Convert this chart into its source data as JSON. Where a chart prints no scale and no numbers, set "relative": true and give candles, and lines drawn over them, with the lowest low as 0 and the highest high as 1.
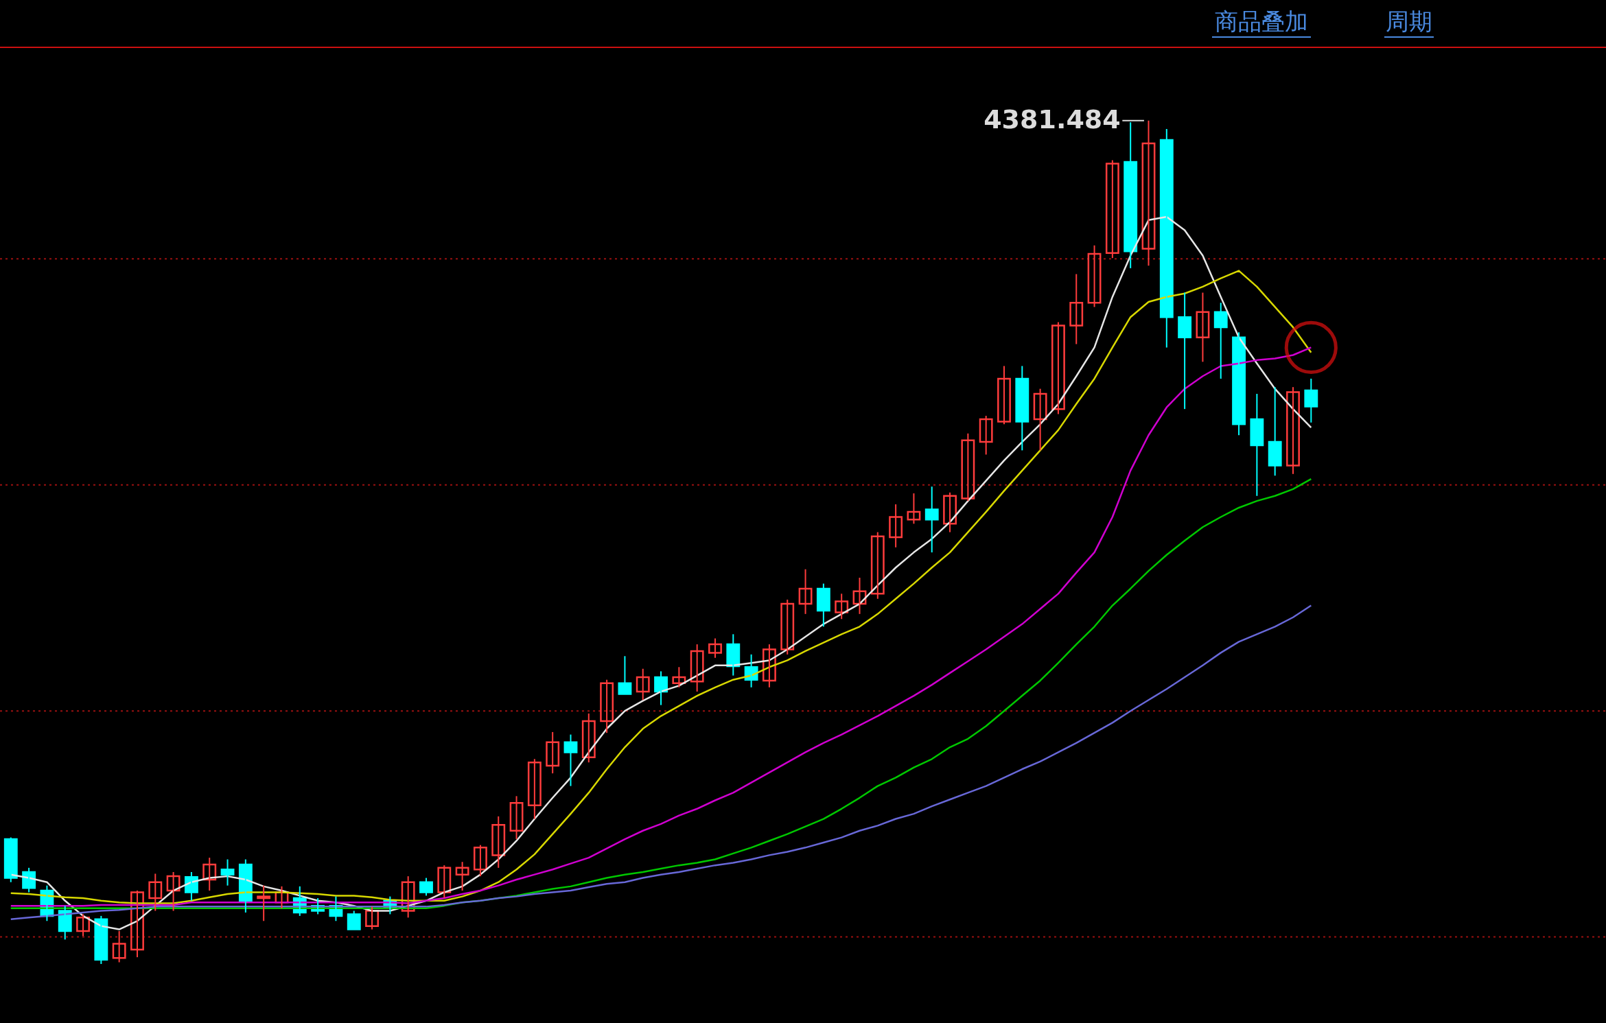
{
  "chart_data": {
    "type": "candlestick",
    "relative": true,
    "categories": [
      null,
      null,
      null,
      null,
      null,
      null,
      null,
      null,
      null,
      null,
      null,
      null,
      null,
      null,
      null,
      null,
      null,
      null,
      null,
      null,
      null,
      null,
      null,
      null,
      null,
      null,
      null,
      null,
      null,
      null,
      null,
      null,
      null,
      null,
      null,
      null,
      null,
      null,
      null,
      null,
      null,
      null,
      null,
      null,
      null,
      null,
      null,
      null,
      null,
      null,
      null,
      null,
      null,
      null,
      null,
      null,
      null,
      null,
      null,
      null,
      null,
      null,
      null,
      null,
      null,
      null,
      null,
      null,
      null,
      null,
      null,
      null,
      null
    ],
    "ohlc": [
      [
        0.148,
        0.15,
        0.097,
        0.102
      ],
      [
        0.109,
        0.114,
        0.085,
        0.09
      ],
      [
        0.087,
        0.093,
        0.051,
        0.057
      ],
      [
        0.063,
        0.069,
        0.029,
        0.039
      ],
      [
        0.039,
        0.059,
        0.033,
        0.055
      ],
      [
        0.053,
        0.057,
        0.0,
        0.005
      ],
      [
        0.007,
        0.039,
        0.002,
        0.024
      ],
      [
        0.017,
        0.087,
        0.008,
        0.085
      ],
      [
        0.078,
        0.107,
        0.063,
        0.097
      ],
      [
        0.087,
        0.109,
        0.063,
        0.104
      ],
      [
        0.103,
        0.109,
        0.075,
        0.085
      ],
      [
        0.1,
        0.126,
        0.087,
        0.118
      ],
      [
        0.112,
        0.124,
        0.093,
        0.106
      ],
      [
        0.118,
        0.124,
        0.061,
        0.075
      ],
      [
        0.078,
        0.093,
        0.051,
        0.08
      ],
      [
        0.073,
        0.092,
        0.066,
        0.085
      ],
      [
        0.078,
        0.092,
        0.057,
        0.061
      ],
      [
        0.069,
        0.078,
        0.059,
        0.063
      ],
      [
        0.069,
        0.08,
        0.051,
        0.057
      ],
      [
        0.059,
        0.063,
        0.041,
        0.041
      ],
      [
        0.045,
        0.068,
        0.041,
        0.063
      ],
      [
        0.075,
        0.08,
        0.059,
        0.066
      ],
      [
        0.063,
        0.104,
        0.055,
        0.097
      ],
      [
        0.097,
        0.102,
        0.081,
        0.085
      ],
      [
        0.085,
        0.117,
        0.078,
        0.114
      ],
      [
        0.106,
        0.121,
        0.087,
        0.114
      ],
      [
        0.112,
        0.141,
        0.104,
        0.138
      ],
      [
        0.129,
        0.175,
        0.114,
        0.165
      ],
      [
        0.158,
        0.199,
        0.148,
        0.191
      ],
      [
        0.188,
        0.243,
        0.172,
        0.239
      ],
      [
        0.235,
        0.275,
        0.226,
        0.263
      ],
      [
        0.263,
        0.272,
        0.211,
        0.251
      ],
      [
        0.245,
        0.297,
        0.239,
        0.288
      ],
      [
        0.288,
        0.337,
        0.274,
        0.333
      ],
      [
        0.333,
        0.365,
        0.32,
        0.32
      ],
      [
        0.323,
        0.35,
        0.313,
        0.34
      ],
      [
        0.34,
        0.347,
        0.307,
        0.323
      ],
      [
        0.333,
        0.352,
        0.328,
        0.34
      ],
      [
        0.335,
        0.379,
        0.323,
        0.371
      ],
      [
        0.369,
        0.386,
        0.363,
        0.379
      ],
      [
        0.379,
        0.391,
        0.342,
        0.353
      ],
      [
        0.352,
        0.367,
        0.328,
        0.337
      ],
      [
        0.336,
        0.379,
        0.328,
        0.373
      ],
      [
        0.373,
        0.432,
        0.367,
        0.427
      ],
      [
        0.427,
        0.468,
        0.415,
        0.445
      ],
      [
        0.445,
        0.451,
        0.4,
        0.419
      ],
      [
        0.417,
        0.439,
        0.409,
        0.43
      ],
      [
        0.427,
        0.458,
        0.415,
        0.442
      ],
      [
        0.439,
        0.512,
        0.433,
        0.507
      ],
      [
        0.506,
        0.545,
        0.494,
        0.53
      ],
      [
        0.527,
        0.558,
        0.522,
        0.536
      ],
      [
        0.539,
        0.566,
        0.488,
        0.527
      ],
      [
        0.522,
        0.559,
        0.512,
        0.555
      ],
      [
        0.552,
        0.629,
        0.549,
        0.621
      ],
      [
        0.619,
        0.65,
        0.604,
        0.646
      ],
      [
        0.643,
        0.709,
        0.64,
        0.694
      ],
      [
        0.694,
        0.709,
        0.609,
        0.643
      ],
      [
        0.646,
        0.682,
        0.609,
        0.676
      ],
      [
        0.658,
        0.761,
        0.652,
        0.757
      ],
      [
        0.757,
        0.818,
        0.735,
        0.784
      ],
      [
        0.784,
        0.852,
        0.779,
        0.842
      ],
      [
        0.843,
        0.953,
        0.837,
        0.949
      ],
      [
        0.951,
        0.998,
        0.825,
        0.845
      ],
      [
        0.848,
        1.0,
        0.828,
        0.973
      ],
      [
        0.977,
        0.99,
        0.731,
        0.767
      ],
      [
        0.767,
        0.796,
        0.658,
        0.743
      ],
      [
        0.743,
        0.796,
        0.714,
        0.773
      ],
      [
        0.773,
        0.784,
        0.694,
        0.755
      ],
      [
        0.743,
        0.749,
        0.627,
        0.64
      ],
      [
        0.646,
        0.676,
        0.555,
        0.615
      ],
      [
        0.619,
        0.684,
        0.579,
        0.591
      ],
      [
        0.591,
        0.684,
        0.581,
        0.678
      ],
      [
        0.68,
        0.694,
        0.642,
        0.661
      ]
    ],
    "colors": [
      "#00ffff",
      "#00ffff",
      "#00ffff",
      "#00ffff",
      "#ff3c3c",
      "#00ffff",
      "#ff3c3c",
      "#ff3c3c",
      "#ff3c3c",
      "#ff3c3c",
      "#00ffff",
      "#ff3c3c",
      "#00ffff",
      "#00ffff",
      "#ff3c3c",
      "#ff3c3c",
      "#00ffff",
      "#00ffff",
      "#00ffff",
      "#00ffff",
      "#ff3c3c",
      "#00ffff",
      "#ff3c3c",
      "#00ffff",
      "#ff3c3c",
      "#ff3c3c",
      "#ff3c3c",
      "#ff3c3c",
      "#ff3c3c",
      "#ff3c3c",
      "#ff3c3c",
      "#00ffff",
      "#ff3c3c",
      "#ff3c3c",
      "#00ffff",
      "#ff3c3c",
      "#00ffff",
      "#ff3c3c",
      "#ff3c3c",
      "#ff3c3c",
      "#00ffff",
      "#00ffff",
      "#ff3c3c",
      "#ff3c3c",
      "#ff3c3c",
      "#00ffff",
      "#ff3c3c",
      "#ff3c3c",
      "#ff3c3c",
      "#ff3c3c",
      "#ff3c3c",
      "#00ffff",
      "#ff3c3c",
      "#ff3c3c",
      "#ff3c3c",
      "#ff3c3c",
      "#00ffff",
      "#ff3c3c",
      "#ff3c3c",
      "#ff3c3c",
      "#ff3c3c",
      "#ff3c3c",
      "#00ffff",
      "#ff3c3c",
      "#00ffff",
      "#00ffff",
      "#ff3c3c",
      "#00ffff",
      "#00ffff",
      "#00ffff",
      "#00ffff",
      "#ff3c3c",
      "#00ffff"
    ],
    "series": [
      {
        "type": "line",
        "color": "#e6e6e6",
        "values": [
          0.106,
          0.102,
          0.097,
          0.075,
          0.057,
          0.045,
          0.041,
          0.051,
          0.069,
          0.087,
          0.097,
          0.102,
          0.104,
          0.1,
          0.092,
          0.087,
          0.081,
          0.075,
          0.073,
          0.069,
          0.063,
          0.063,
          0.069,
          0.075,
          0.085,
          0.092,
          0.106,
          0.124,
          0.146,
          0.172,
          0.197,
          0.221,
          0.251,
          0.279,
          0.3,
          0.312,
          0.323,
          0.33,
          0.342,
          0.354,
          0.354,
          0.357,
          0.36,
          0.373,
          0.388,
          0.403,
          0.415,
          0.427,
          0.449,
          0.47,
          0.488,
          0.504,
          0.524,
          0.549,
          0.573,
          0.597,
          0.619,
          0.64,
          0.664,
          0.697,
          0.731,
          0.791,
          0.84,
          0.882,
          0.886,
          0.87,
          0.84,
          0.791,
          0.743,
          0.712,
          0.682,
          0.658,
          0.636
        ]
      },
      {
        "type": "line",
        "color": "#d8d800",
        "values": [
          0.084,
          0.083,
          0.081,
          0.079,
          0.078,
          0.075,
          0.073,
          0.072,
          0.072,
          0.072,
          0.075,
          0.079,
          0.083,
          0.085,
          0.085,
          0.085,
          0.084,
          0.083,
          0.081,
          0.081,
          0.079,
          0.076,
          0.075,
          0.075,
          0.075,
          0.08,
          0.087,
          0.097,
          0.112,
          0.13,
          0.154,
          0.178,
          0.203,
          0.231,
          0.257,
          0.279,
          0.294,
          0.306,
          0.318,
          0.328,
          0.337,
          0.342,
          0.352,
          0.36,
          0.371,
          0.381,
          0.391,
          0.4,
          0.415,
          0.433,
          0.451,
          0.47,
          0.488,
          0.512,
          0.536,
          0.561,
          0.585,
          0.609,
          0.633,
          0.664,
          0.694,
          0.731,
          0.767,
          0.785,
          0.791,
          0.795,
          0.803,
          0.813,
          0.822,
          0.803,
          0.779,
          0.755,
          0.725
        ]
      },
      {
        "type": "line",
        "color": "#d000d0",
        "values": [
          0.069,
          0.069,
          0.069,
          0.069,
          0.069,
          0.07,
          0.07,
          0.07,
          0.07,
          0.07,
          0.073,
          0.073,
          0.073,
          0.073,
          0.073,
          0.073,
          0.073,
          0.073,
          0.073,
          0.073,
          0.073,
          0.073,
          0.072,
          0.075,
          0.078,
          0.083,
          0.087,
          0.093,
          0.1,
          0.106,
          0.112,
          0.119,
          0.126,
          0.137,
          0.148,
          0.158,
          0.166,
          0.176,
          0.184,
          0.194,
          0.203,
          0.215,
          0.227,
          0.239,
          0.251,
          0.262,
          0.272,
          0.283,
          0.294,
          0.306,
          0.318,
          0.331,
          0.345,
          0.359,
          0.373,
          0.388,
          0.403,
          0.421,
          0.439,
          0.464,
          0.488,
          0.53,
          0.585,
          0.627,
          0.66,
          0.682,
          0.697,
          0.709,
          0.712,
          0.716,
          0.718,
          0.722,
          0.731
        ]
      },
      {
        "type": "line",
        "color": "#00c800",
        "values": [
          0.066,
          0.066,
          0.066,
          0.066,
          0.066,
          0.066,
          0.066,
          0.066,
          0.066,
          0.066,
          0.066,
          0.066,
          0.066,
          0.066,
          0.066,
          0.066,
          0.066,
          0.066,
          0.066,
          0.066,
          0.066,
          0.066,
          0.066,
          0.066,
          0.069,
          0.073,
          0.075,
          0.078,
          0.081,
          0.085,
          0.089,
          0.092,
          0.097,
          0.102,
          0.106,
          0.109,
          0.113,
          0.117,
          0.12,
          0.124,
          0.131,
          0.138,
          0.146,
          0.154,
          0.163,
          0.172,
          0.184,
          0.197,
          0.211,
          0.221,
          0.233,
          0.243,
          0.257,
          0.267,
          0.282,
          0.3,
          0.318,
          0.336,
          0.357,
          0.379,
          0.4,
          0.425,
          0.445,
          0.466,
          0.485,
          0.502,
          0.518,
          0.53,
          0.541,
          0.549,
          0.555,
          0.563,
          0.575
        ]
      },
      {
        "type": "line",
        "color": "#6868d8",
        "values": [
          0.053,
          0.055,
          0.057,
          0.059,
          0.061,
          0.063,
          0.064,
          0.066,
          0.068,
          0.068,
          0.068,
          0.068,
          0.068,
          0.068,
          0.068,
          0.068,
          0.068,
          0.068,
          0.068,
          0.068,
          0.068,
          0.068,
          0.068,
          0.068,
          0.07,
          0.073,
          0.075,
          0.078,
          0.08,
          0.083,
          0.085,
          0.087,
          0.091,
          0.095,
          0.097,
          0.102,
          0.106,
          0.109,
          0.113,
          0.117,
          0.12,
          0.124,
          0.129,
          0.133,
          0.138,
          0.144,
          0.15,
          0.158,
          0.164,
          0.172,
          0.178,
          0.187,
          0.195,
          0.203,
          0.211,
          0.221,
          0.231,
          0.24,
          0.251,
          0.262,
          0.274,
          0.286,
          0.3,
          0.313,
          0.326,
          0.34,
          0.354,
          0.369,
          0.382,
          0.391,
          0.4,
          0.411,
          0.425
        ]
      }
    ],
    "annotations": [
      "商品叠加",
      "周期",
      "4381.484"
    ],
    "ref_lines": [
      {
        "axis": "y",
        "value": 0.032,
        "color": "#9a1010",
        "line_style": "dotted"
      },
      {
        "axis": "y",
        "value": 0.3,
        "color": "#9a1010",
        "line_style": "dotted"
      },
      {
        "axis": "y",
        "value": 0.568,
        "color": "#9a1010",
        "line_style": "dotted"
      },
      {
        "axis": "y",
        "value": 0.836,
        "color": "#9a1010",
        "line_style": "dotted"
      }
    ]
  }
}
